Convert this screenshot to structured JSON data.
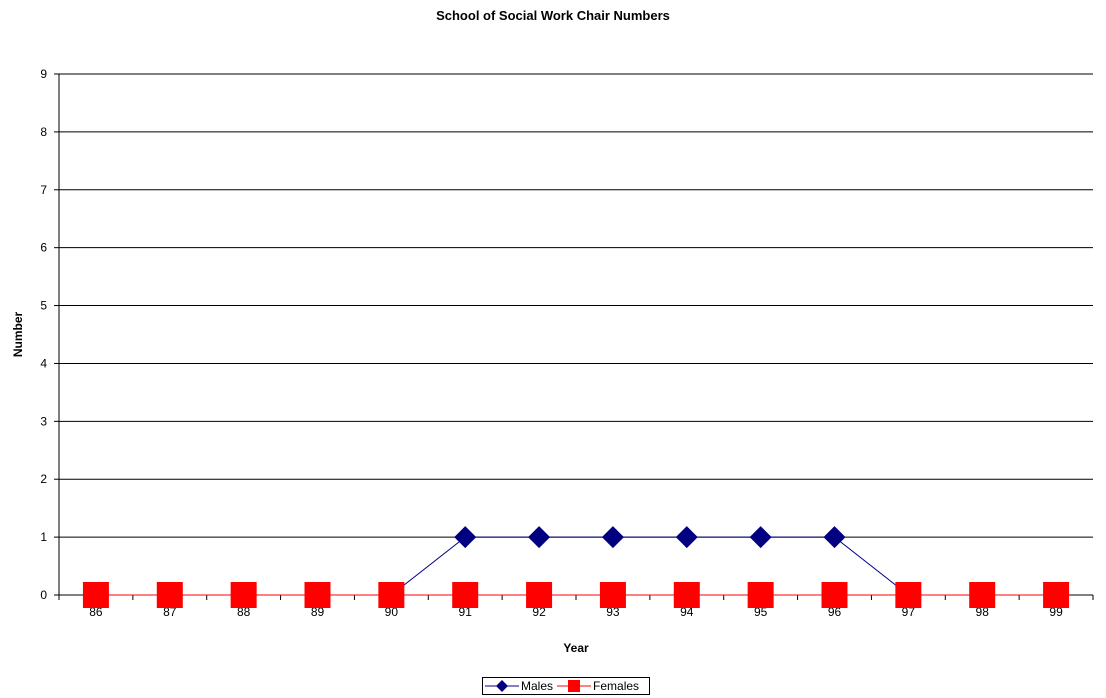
{
  "chart_data": {
    "type": "line",
    "title": "School of Social Work Chair Numbers",
    "xlabel": "Year",
    "ylabel": "Number",
    "categories": [
      "86",
      "87",
      "88",
      "89",
      "90",
      "91",
      "92",
      "93",
      "94",
      "95",
      "96",
      "97",
      "98",
      "99"
    ],
    "ylim": [
      0,
      9
    ],
    "yticks": [
      0,
      1,
      2,
      3,
      4,
      5,
      6,
      7,
      8,
      9
    ],
    "grid": true,
    "legend_position": "bottom",
    "series": [
      {
        "name": "Males",
        "color": "#000080",
        "marker": "diamond",
        "values": [
          0,
          0,
          0,
          0,
          0,
          1,
          1,
          1,
          1,
          1,
          1,
          0,
          0,
          0
        ]
      },
      {
        "name": "Females",
        "color": "#ff0000",
        "marker": "square",
        "values": [
          0,
          0,
          0,
          0,
          0,
          0,
          0,
          0,
          0,
          0,
          0,
          0,
          0,
          0
        ]
      }
    ]
  }
}
